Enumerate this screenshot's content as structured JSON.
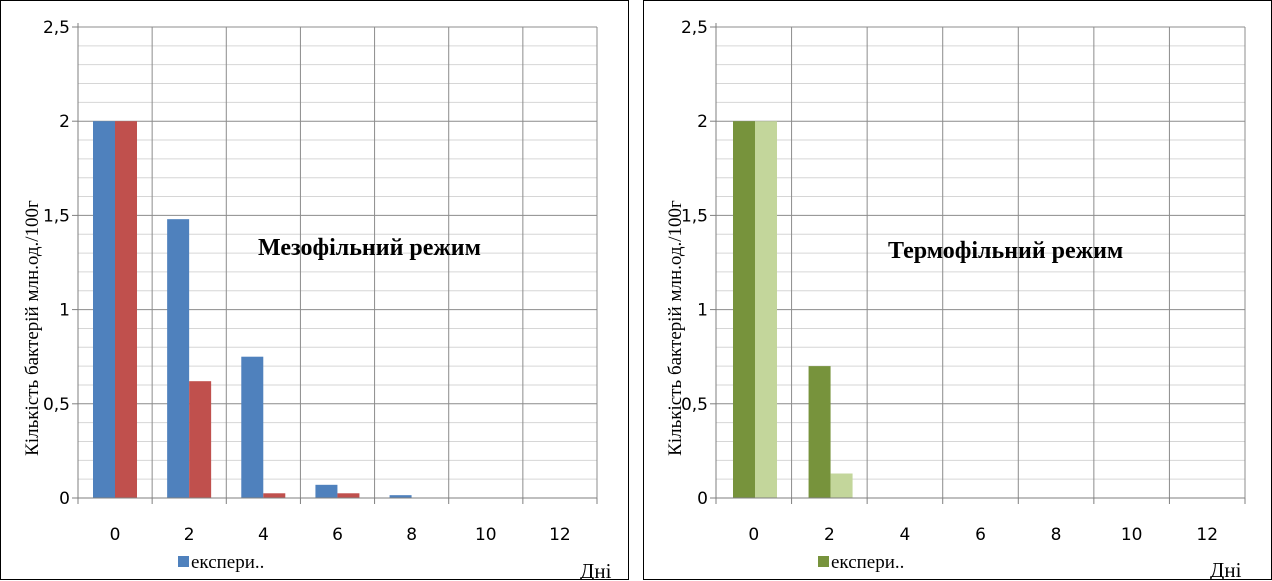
{
  "chart_data": [
    {
      "type": "bar",
      "annotation": "Мезофільний режим",
      "ylabel": "Кількість бактерій млн.од./100г",
      "xlabel": "Дні",
      "categories": [
        "0",
        "2",
        "4",
        "6",
        "8",
        "10",
        "12"
      ],
      "y_ticks": [
        "0",
        "0,5",
        "1",
        "1,5",
        "2",
        "2,5"
      ],
      "ylim": [
        0,
        2.5
      ],
      "legend_label": "експери..",
      "grid": true,
      "series": [
        {
          "values": [
            2.0,
            1.48,
            0.75,
            0.07,
            0.015,
            0,
            0
          ],
          "color": "#4f81bd"
        },
        {
          "values": [
            2.0,
            0.62,
            0.025,
            0.025,
            0,
            0,
            0
          ],
          "color": "#c0504d"
        }
      ]
    },
    {
      "type": "bar",
      "annotation": "Термофільний режим",
      "ylabel": "Кількість бактерій млн.од./100г",
      "xlabel": "Дні",
      "categories": [
        "0",
        "2",
        "4",
        "6",
        "8",
        "10",
        "12"
      ],
      "y_ticks": [
        "0",
        "0,5",
        "1",
        "1,5",
        "2",
        "2,5"
      ],
      "ylim": [
        0,
        2.5
      ],
      "legend_label": "експери..",
      "grid": true,
      "series": [
        {
          "values": [
            2.0,
            0.7,
            0,
            0,
            0,
            0,
            0
          ],
          "color": "#77933c"
        },
        {
          "values": [
            2.0,
            0.13,
            0,
            0,
            0,
            0,
            0
          ],
          "color": "#c3d69b"
        }
      ]
    }
  ]
}
